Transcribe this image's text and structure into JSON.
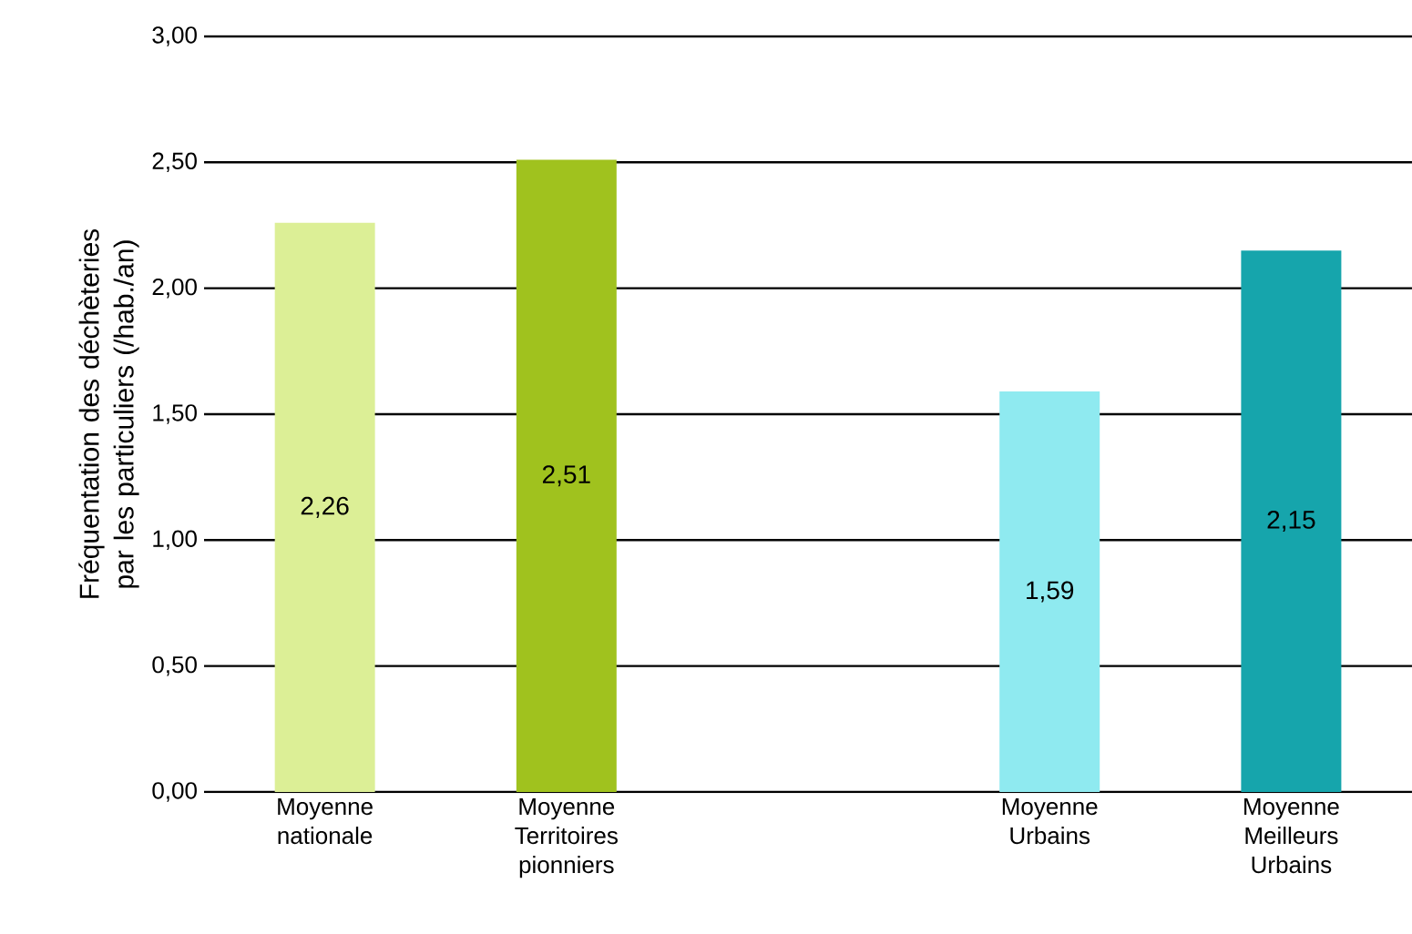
{
  "chart_data": {
    "type": "bar",
    "ylabel": "Fréquentation des déchèteries par les particuliers (/hab./an)",
    "categories": [
      "Moyenne nationale",
      "Moyenne Territoires pionniers",
      null,
      "Moyenne Urbains",
      "Moyenne Meilleurs Urbains"
    ],
    "values": [
      2.26,
      2.51,
      null,
      1.59,
      2.15
    ],
    "colors": [
      "#dcef96",
      "#a0c21e",
      "#ffffff",
      "#8feaf0",
      "#16a5ac"
    ],
    "value_labels": [
      "2,26",
      "2,51",
      null,
      "1,59",
      "2,15"
    ],
    "ylim": [
      0,
      3
    ],
    "yticks": [
      {
        "value": 0,
        "label": "0,00"
      },
      {
        "value": 0.5,
        "label": "0,50"
      },
      {
        "value": 1,
        "label": "1,00"
      },
      {
        "value": 1.5,
        "label": "1,50"
      },
      {
        "value": 2,
        "label": "2,00"
      },
      {
        "value": 2.5,
        "label": "2,50"
      },
      {
        "value": 3,
        "label": "3,00"
      }
    ],
    "grid": "y"
  }
}
